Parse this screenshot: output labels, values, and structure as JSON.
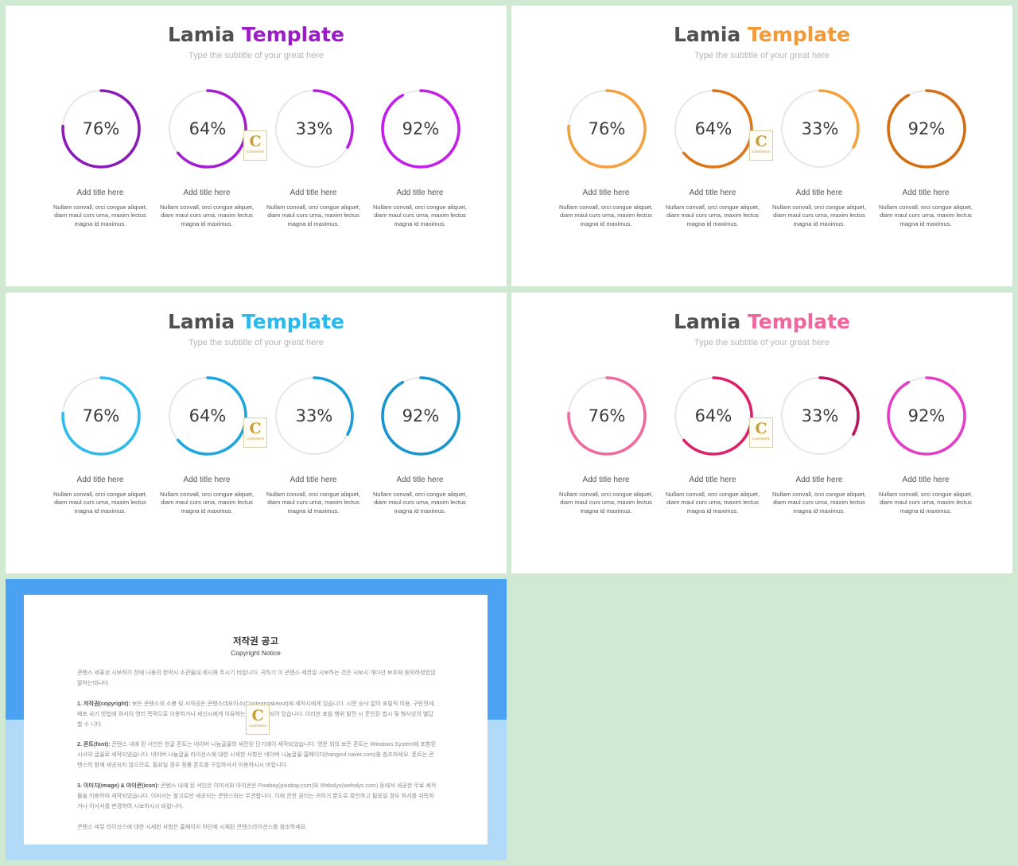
{
  "slides": [
    {
      "title_main": "Lamia",
      "title_accent": "Template",
      "subtitle": "Type the subtitle of your great here",
      "accent": "#9b1bc7",
      "items": [
        {
          "value": 76,
          "percent_label": "76%",
          "title": "Add title here",
          "desc": "Nullam convall, orci congue aliquet, diam maul curs urna, maxim lectus magna id maximus.",
          "color": "#8a1db8"
        },
        {
          "value": 64,
          "percent_label": "64%",
          "title": "Add title here",
          "desc": "Nullam convall, orci congue aliquet, diam maul curs urna, maxim lectus magna id maximus.",
          "color": "#a31ed0"
        },
        {
          "value": 33,
          "percent_label": "33%",
          "title": "Add title here",
          "desc": "Nullam convall, orci congue aliquet, diam maul curs urna, maxim lectus magna id maximus.",
          "color": "#b81ee0"
        },
        {
          "value": 92,
          "percent_label": "92%",
          "title": "Add title here",
          "desc": "Nullam convall, orci congue aliquet, diam maul curs urna, maxim lectus magna id maximus.",
          "color": "#c21fe8"
        }
      ]
    },
    {
      "title_main": "Lamia",
      "title_accent": "Template",
      "subtitle": "Type the subtitle of your great here",
      "accent": "#f39a36",
      "items": [
        {
          "value": 76,
          "percent_label": "76%",
          "title": "Add title here",
          "desc": "Nullam convall, orci congue aliquet, diam maul curs urna, maxim lectus magna id maximus.",
          "color": "#f2a040"
        },
        {
          "value": 64,
          "percent_label": "64%",
          "title": "Add title here",
          "desc": "Nullam convall, orci congue aliquet, diam maul curs urna, maxim lectus magna id maximus.",
          "color": "#dc7618"
        },
        {
          "value": 33,
          "percent_label": "33%",
          "title": "Add title here",
          "desc": "Nullam convall, orci congue aliquet, diam maul curs urna, maxim lectus magna id maximus.",
          "color": "#f4a23e"
        },
        {
          "value": 92,
          "percent_label": "92%",
          "title": "Add title here",
          "desc": "Nullam convall, orci congue aliquet, diam maul curs urna, maxim lectus magna id maximus.",
          "color": "#d46e12"
        }
      ]
    },
    {
      "title_main": "Lamia",
      "title_accent": "Template",
      "subtitle": "Type the subtitle of your great here",
      "accent": "#2ab9ec",
      "items": [
        {
          "value": 76,
          "percent_label": "76%",
          "title": "Add title here",
          "desc": "Nullam convall, orci congue aliquet, diam maul curs urna, maxim lectus magna id maximus.",
          "color": "#2fbcec"
        },
        {
          "value": 64,
          "percent_label": "64%",
          "title": "Add title here",
          "desc": "Nullam convall, orci congue aliquet, diam maul curs urna, maxim lectus magna id maximus.",
          "color": "#1ea6de"
        },
        {
          "value": 33,
          "percent_label": "33%",
          "title": "Add title here",
          "desc": "Nullam convall, orci congue aliquet, diam maul curs urna, maxim lectus magna id maximus.",
          "color": "#1b9ed6"
        },
        {
          "value": 92,
          "percent_label": "92%",
          "title": "Add title here",
          "desc": "Nullam convall, orci congue aliquet, diam maul curs urna, maxim lectus magna id maximus.",
          "color": "#1795cc"
        }
      ]
    },
    {
      "title_main": "Lamia",
      "title_accent": "Template",
      "subtitle": "Type the subtitle of your great here",
      "accent": "#f0659c",
      "items": [
        {
          "value": 76,
          "percent_label": "76%",
          "title": "Add title here",
          "desc": "Nullam convall, orci congue aliquet, diam maul curs urna, maxim lectus magna id maximus.",
          "color": "#ef6a9e"
        },
        {
          "value": 64,
          "percent_label": "64%",
          "title": "Add title here",
          "desc": "Nullam convall, orci congue aliquet, diam maul curs urna, maxim lectus magna id maximus.",
          "color": "#de1f6a"
        },
        {
          "value": 33,
          "percent_label": "33%",
          "title": "Add title here",
          "desc": "Nullam convall, orci congue aliquet, diam maul curs urna, maxim lectus magna id maximus.",
          "color": "#b8185e"
        },
        {
          "value": 92,
          "percent_label": "92%",
          "title": "Add title here",
          "desc": "Nullam convall, orci congue aliquet, diam maul curs urna, maxim lectus magna id maximus.",
          "color": "#e23ec6"
        }
      ]
    }
  ],
  "logo": {
    "letter": "C",
    "text": "CONTENTS"
  },
  "notice": {
    "title": "저작권 공고",
    "subtitle": "Copyright Notice",
    "intro": "콘텐스 세퓨선 시보하기 전에 나용의 한약시 소관들대 세시해 주시기 비랍니다. 귀하기 이 콘텐스 세뮤일 시보하는 것은 시보시 개다년 보조에 동의하셨었임 말하는데니다.",
    "p1_label": "1. 저작권(copyright):",
    "p1": "보든 콘텐스의 소봉 및 서작권은 콘텐스데포이소(Contentstakeout)에 세작시에게 있습니다. 시전 승낙 없이 표빌적 이용, 구탄전세, 배포 사기 방법에 와서이 영리 목적으로 이용하거나 세신시에게 이유하는 것은 금지되어 있습니다. 이러한 표빌 행위 발전 시 준인된 법시 및 형사상의 별답 할 수 니다.",
    "p2_label": "2. 폰트(font):",
    "p2": "콘텐스 내에 된 서인은 한글 폰트는 네이버 나눔글꼴의 세잔된 단기에이 세작되었습니다. 영문 외의 보든 폰트는 Windows System에 포함된 시서의 글꼴로 세작되었습니다. 네이버 나눔글꼴 라이선스에 대한 시세한 사항은 네이버 나눔글꼴 홈페이지(hangeul.naver.com)를 참조하세요. 폰트는 콘텐스의 함께 세공되지 않으므로, 필요일 경우 정품 폰트를 구입하셔서 이용하시시 바랍니다.",
    "p3_label": "3. 이미지(image) & 아이콘(icon):",
    "p3": "콘텐스 내에 된 서인은 이미서와 아이콘은 Pixabay(pixabay.com)와 Webolys(webolys.com) 등에서 세공한 무료 세작물을 이용하여 세작되었습니다. 이미서는 참고로만 세공되는 콘텐스와는 무관합니다. 이에 관한 권리는 귀하기 뿐도로 확인하고 필요일 경우 여서를 쉬득하거나 이서서를 변경하여 시보하시시 바랍니다.",
    "outro": "콘텐스 세뮤 라이선스에 대한 시세한 사항은 홈페이지 하단에 시재된 콘텐스라이선스를 참조하세요."
  }
}
